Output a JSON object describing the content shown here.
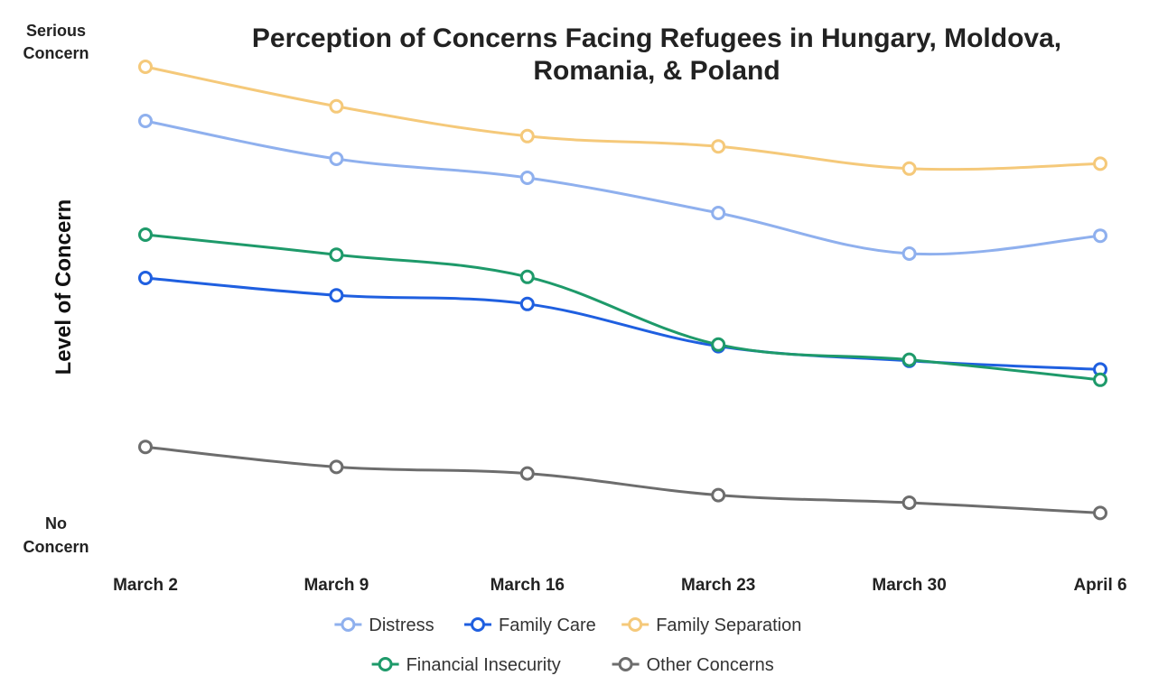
{
  "chart_data": {
    "type": "line",
    "title": "Perception of Concerns Facing Refugees in Hungary, Moldova, Romania, & Poland",
    "title_lines": [
      "Perception of Concerns Facing Refugees in Hungary, Moldova,",
      "Romania, & Poland"
    ],
    "ylabel": "Level of Concern",
    "y_top_label": [
      "Serious",
      "Concern"
    ],
    "y_bottom_label": [
      "No",
      "Concern"
    ],
    "categories": [
      "March 2",
      "March 9",
      "March 16",
      "March 23",
      "March 30",
      "April 6"
    ],
    "ylim": [
      0,
      1
    ],
    "grid": false,
    "legend_position": "bottom",
    "series": [
      {
        "name": "Distress",
        "color": "#8fb0ee",
        "values": [
          0.83,
          0.76,
          0.725,
          0.66,
          0.585,
          0.618
        ]
      },
      {
        "name": "Family Care",
        "color": "#1f5fe0",
        "values": [
          0.54,
          0.508,
          0.492,
          0.414,
          0.387,
          0.371
        ]
      },
      {
        "name": "Family Separation",
        "color": "#f5c97a",
        "values": [
          0.93,
          0.857,
          0.802,
          0.783,
          0.742,
          0.751
        ]
      },
      {
        "name": "Financial Insecurity",
        "color": "#1e9a6a",
        "values": [
          0.62,
          0.583,
          0.542,
          0.417,
          0.389,
          0.352
        ]
      },
      {
        "name": "Other Concerns",
        "color": "#6d6d6d",
        "values": [
          0.228,
          0.191,
          0.179,
          0.139,
          0.125,
          0.106
        ]
      }
    ]
  }
}
